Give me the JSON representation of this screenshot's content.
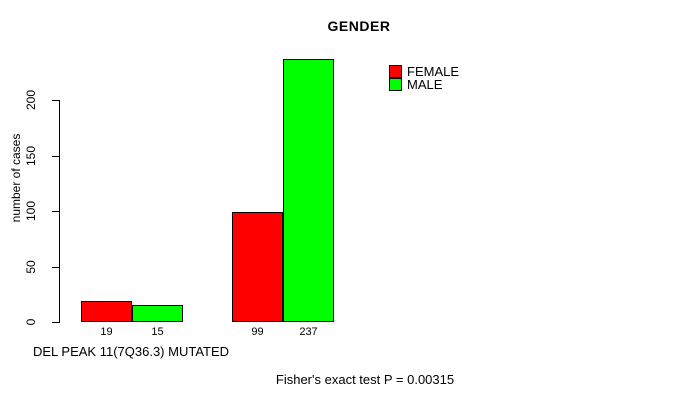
{
  "chart_data": {
    "type": "bar",
    "title": "GENDER",
    "ylabel": "number of cases",
    "xlabel": "DEL PEAK 11(7Q36.3) MUTATED",
    "footer": "Fisher's exact test P = 0.00315",
    "legend_position": "top-right",
    "series": [
      {
        "name": "FEMALE",
        "color": "#ff0000",
        "values": [
          19,
          99
        ]
      },
      {
        "name": "MALE",
        "color": "#00ff00",
        "values": [
          15,
          237
        ]
      }
    ],
    "bar_value_labels": [
      "19",
      "15",
      "99",
      "237"
    ],
    "yticks": [
      0,
      50,
      100,
      150,
      200
    ],
    "ylim": [
      0,
      237
    ],
    "grid": false,
    "colors": {
      "bar_border": "#000000",
      "axis": "#000000",
      "text": "#000000",
      "background": "#ffffff"
    }
  }
}
